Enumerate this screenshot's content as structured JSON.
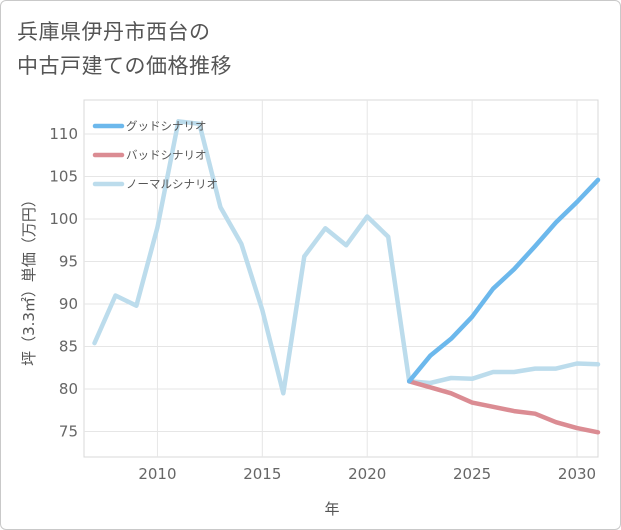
{
  "title_lines": [
    "兵庫県伊丹市西台の",
    "中古戸建ての価格推移"
  ],
  "chart_data": {
    "type": "line",
    "title": "兵庫県伊丹市西台の中古戸建ての価格推移",
    "xlabel": "年",
    "ylabel": "坪（3.3㎡）単価（万円）",
    "xlim": [
      2006.5,
      2031
    ],
    "ylim": [
      72,
      114
    ],
    "x_ticks": [
      2010,
      2015,
      2020,
      2025,
      2030
    ],
    "x_tick_labels": [
      "2010",
      "2015",
      "2020",
      "2025",
      "2030"
    ],
    "y_ticks": [
      75,
      80,
      85,
      90,
      95,
      100,
      105,
      110
    ],
    "y_tick_labels": [
      "75",
      "80",
      "85",
      "90",
      "95",
      "100",
      "105",
      "110"
    ],
    "grid": true,
    "legend_position": "top-left",
    "series": [
      {
        "name": "グッドシナリオ",
        "color": "#6cb8ec",
        "x": [
          2022,
          2023,
          2024,
          2025,
          2026,
          2027,
          2028,
          2029,
          2030,
          2031
        ],
        "y": [
          80.9,
          83.9,
          85.9,
          88.5,
          91.8,
          94.1,
          96.8,
          99.6,
          102.0,
          104.6
        ]
      },
      {
        "name": "バッドシナリオ",
        "color": "#db8c93",
        "x": [
          2022,
          2023,
          2024,
          2025,
          2026,
          2027,
          2028,
          2029,
          2030,
          2031
        ],
        "y": [
          80.9,
          80.2,
          79.5,
          78.4,
          77.9,
          77.4,
          77.1,
          76.1,
          75.4,
          74.9
        ]
      },
      {
        "name": "ノーマルシナリオ",
        "color": "#bcdcec",
        "x": [
          2007,
          2008,
          2009,
          2010,
          2011,
          2012,
          2013,
          2014,
          2015,
          2016,
          2017,
          2018,
          2019,
          2020,
          2021,
          2022,
          2023,
          2024,
          2025,
          2026,
          2027,
          2028,
          2029,
          2030,
          2031
        ],
        "y": [
          85.4,
          91.0,
          89.8,
          99.0,
          111.5,
          111.2,
          101.4,
          97.1,
          89.3,
          79.5,
          95.6,
          98.9,
          96.9,
          100.3,
          97.9,
          80.9,
          80.7,
          81.3,
          81.2,
          82.0,
          82.0,
          82.4,
          82.4,
          83.0,
          82.9
        ]
      }
    ]
  }
}
